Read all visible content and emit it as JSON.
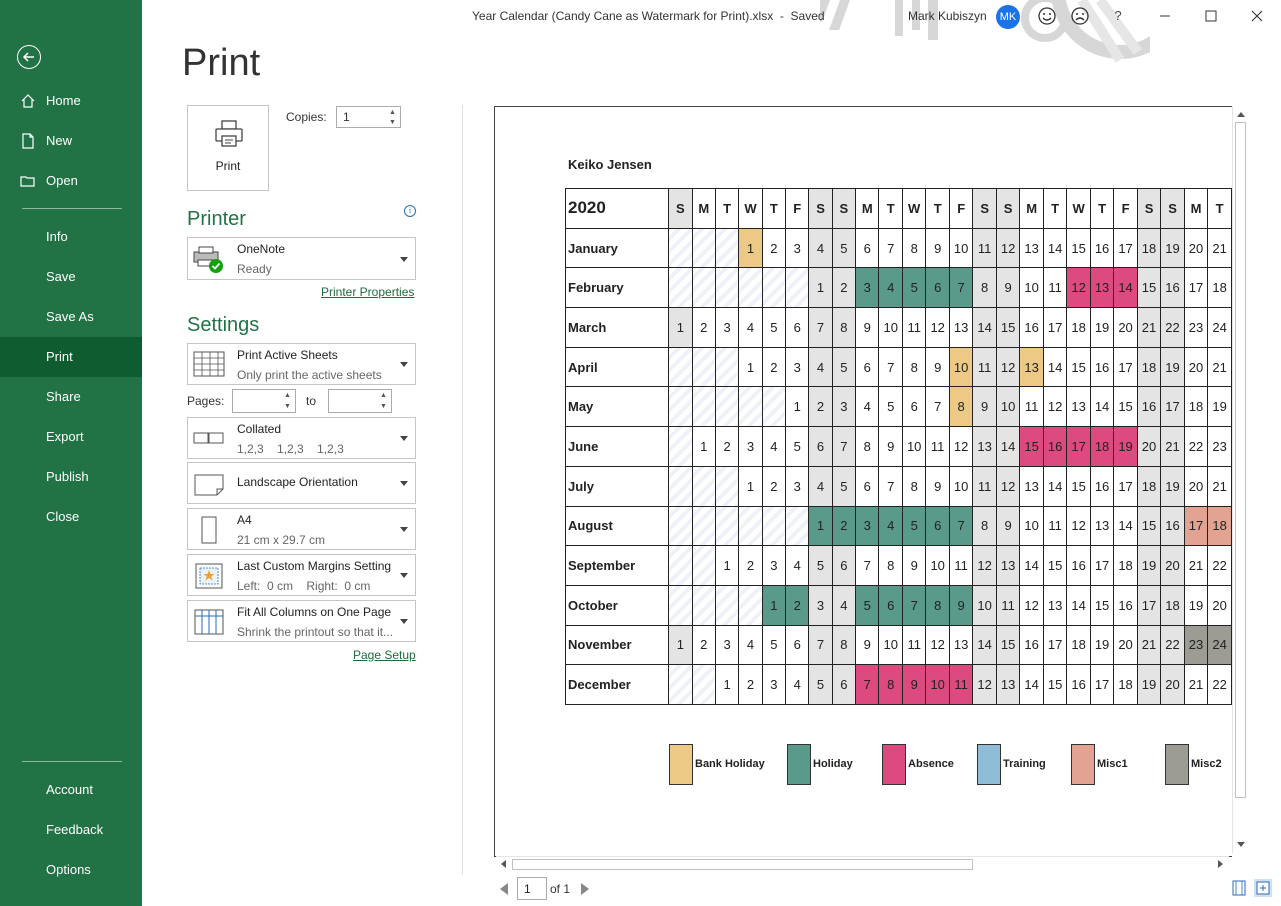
{
  "window": {
    "title": "Year Calendar (Candy Cane as Watermark for Print).xlsx  -  Saved",
    "user": "Mark Kubiszyn",
    "avatar": "MK",
    "icons": [
      "smiley-icon",
      "frown-icon",
      "help-icon",
      "minimize-icon",
      "restore-icon",
      "close-icon"
    ],
    "help": "?"
  },
  "nav": {
    "items": [
      {
        "label": "Home",
        "icon": "home-icon"
      },
      {
        "label": "New",
        "icon": "new-document-icon"
      },
      {
        "label": "Open",
        "icon": "folder-icon"
      },
      {
        "label": "Info"
      },
      {
        "label": "Save"
      },
      {
        "label": "Save As"
      },
      {
        "label": "Print",
        "selected": true
      },
      {
        "label": "Share"
      },
      {
        "label": "Export"
      },
      {
        "label": "Publish"
      },
      {
        "label": "Close"
      }
    ],
    "bottom": [
      {
        "label": "Account"
      },
      {
        "label": "Feedback"
      },
      {
        "label": "Options"
      }
    ]
  },
  "print": {
    "heading": "Print",
    "button_label": "Print",
    "copies_label": "Copies:",
    "copies_value": "1",
    "printer_heading": "Printer",
    "printer_name": "OneNote",
    "printer_status": "Ready",
    "printer_properties": "Printer Properties",
    "settings_heading": "Settings",
    "settings": [
      {
        "title": "Print Active Sheets",
        "sub": "Only print the active sheets"
      },
      {
        "title": "Collated",
        "sub": "1,2,3    1,2,3    1,2,3"
      },
      {
        "title": "Landscape Orientation",
        "sub": ""
      },
      {
        "title": "A4",
        "sub": "21 cm x 29.7 cm"
      },
      {
        "title": "Last Custom Margins Setting",
        "sub": "Left:  0 cm    Right:  0 cm"
      },
      {
        "title": "Fit All Columns on One Page",
        "sub": "Shrink the printout so that it..."
      }
    ],
    "pages_label": "Pages:",
    "to_label": "to",
    "page_setup": "Page Setup"
  },
  "preview": {
    "employee": "Keiko Jensen",
    "year": "2020",
    "day_headers": [
      "S",
      "M",
      "T",
      "W",
      "T",
      "F",
      "S",
      "S",
      "M",
      "T",
      "W",
      "T",
      "F",
      "S",
      "S",
      "M",
      "T",
      "W",
      "T",
      "F",
      "S",
      "S",
      "M",
      "T"
    ],
    "months": [
      {
        "name": "January",
        "days": [
          "",
          "",
          "",
          "1",
          "2",
          "3",
          "4",
          "5",
          "6",
          "7",
          "8",
          "9",
          "10",
          "11",
          "12",
          "13",
          "14",
          "15",
          "16",
          "17",
          "18",
          "19",
          "20",
          "21"
        ],
        "marks": {
          "3": "bank"
        }
      },
      {
        "name": "February",
        "days": [
          "",
          "",
          "",
          "",
          "",
          "",
          "1",
          "2",
          "3",
          "4",
          "5",
          "6",
          "7",
          "8",
          "9",
          "10",
          "11",
          "12",
          "13",
          "14",
          "15",
          "16",
          "17",
          "18"
        ],
        "marks": {
          "8": "holiday",
          "9": "holiday",
          "10": "holiday",
          "11": "holiday",
          "12": "holiday",
          "17": "absence",
          "18": "absence",
          "19": "absence"
        }
      },
      {
        "name": "March",
        "days": [
          "1",
          "2",
          "3",
          "4",
          "5",
          "6",
          "7",
          "8",
          "9",
          "10",
          "11",
          "12",
          "13",
          "14",
          "15",
          "16",
          "17",
          "18",
          "19",
          "20",
          "21",
          "22",
          "23",
          "24"
        ],
        "marks": {}
      },
      {
        "name": "April",
        "days": [
          "",
          "",
          "",
          "1",
          "2",
          "3",
          "4",
          "5",
          "6",
          "7",
          "8",
          "9",
          "10",
          "11",
          "12",
          "13",
          "14",
          "15",
          "16",
          "17",
          "18",
          "19",
          "20",
          "21"
        ],
        "marks": {
          "12": "bank",
          "15": "bank"
        }
      },
      {
        "name": "May",
        "days": [
          "",
          "",
          "",
          "",
          "",
          "1",
          "2",
          "3",
          "4",
          "5",
          "6",
          "7",
          "8",
          "9",
          "10",
          "11",
          "12",
          "13",
          "14",
          "15",
          "16",
          "17",
          "18",
          "19"
        ],
        "marks": {
          "12": "bank"
        }
      },
      {
        "name": "June",
        "days": [
          "",
          "1",
          "2",
          "3",
          "4",
          "5",
          "6",
          "7",
          "8",
          "9",
          "10",
          "11",
          "12",
          "13",
          "14",
          "15",
          "16",
          "17",
          "18",
          "19",
          "20",
          "21",
          "22",
          "23"
        ],
        "marks": {
          "15": "absence",
          "16": "absence",
          "17": "absence",
          "18": "absence",
          "19": "absence"
        }
      },
      {
        "name": "July",
        "days": [
          "",
          "",
          "",
          "1",
          "2",
          "3",
          "4",
          "5",
          "6",
          "7",
          "8",
          "9",
          "10",
          "11",
          "12",
          "13",
          "14",
          "15",
          "16",
          "17",
          "18",
          "19",
          "20",
          "21"
        ],
        "marks": {}
      },
      {
        "name": "August",
        "days": [
          "",
          "",
          "",
          "",
          "",
          "",
          "1",
          "2",
          "3",
          "4",
          "5",
          "6",
          "7",
          "8",
          "9",
          "10",
          "11",
          "12",
          "13",
          "14",
          "15",
          "16",
          "17",
          "18"
        ],
        "marks": {
          "6": "holiday",
          "7": "holiday",
          "8": "holiday",
          "9": "holiday",
          "10": "holiday",
          "11": "holiday",
          "12": "holiday",
          "22": "misc1",
          "23": "misc1"
        }
      },
      {
        "name": "September",
        "days": [
          "",
          "",
          "1",
          "2",
          "3",
          "4",
          "5",
          "6",
          "7",
          "8",
          "9",
          "10",
          "11",
          "12",
          "13",
          "14",
          "15",
          "16",
          "17",
          "18",
          "19",
          "20",
          "21",
          "22"
        ],
        "marks": {}
      },
      {
        "name": "October",
        "days": [
          "",
          "",
          "",
          "",
          "1",
          "2",
          "3",
          "4",
          "5",
          "6",
          "7",
          "8",
          "9",
          "10",
          "11",
          "12",
          "13",
          "14",
          "15",
          "16",
          "17",
          "18",
          "19",
          "20"
        ],
        "marks": {
          "4": "holiday",
          "5": "holiday",
          "8": "holiday",
          "9": "holiday",
          "10": "holiday",
          "11": "holiday",
          "12": "holiday"
        }
      },
      {
        "name": "November",
        "days": [
          "1",
          "2",
          "3",
          "4",
          "5",
          "6",
          "7",
          "8",
          "9",
          "10",
          "11",
          "12",
          "13",
          "14",
          "15",
          "16",
          "17",
          "18",
          "19",
          "20",
          "21",
          "22",
          "23",
          "24"
        ],
        "marks": {
          "22": "misc2",
          "23": "misc2"
        }
      },
      {
        "name": "December",
        "days": [
          "",
          "",
          "1",
          "2",
          "3",
          "4",
          "5",
          "6",
          "7",
          "8",
          "9",
          "10",
          "11",
          "12",
          "13",
          "14",
          "15",
          "16",
          "17",
          "18",
          "19",
          "20",
          "21",
          "22"
        ],
        "marks": {
          "8": "absence",
          "9": "absence",
          "10": "absence",
          "11": "absence",
          "12": "absence"
        }
      }
    ],
    "legend": [
      {
        "label": "Bank Holiday",
        "color": "#ecca86"
      },
      {
        "label": "Holiday",
        "color": "#5a9a8a"
      },
      {
        "label": "Absence",
        "color": "#dc4a80"
      },
      {
        "label": "Training",
        "color": "#8fbcd6"
      },
      {
        "label": "Misc1",
        "color": "#e3a393"
      },
      {
        "label": "Misc2",
        "color": "#9c9c94"
      }
    ],
    "page_value": "1",
    "page_of": "of 1"
  }
}
